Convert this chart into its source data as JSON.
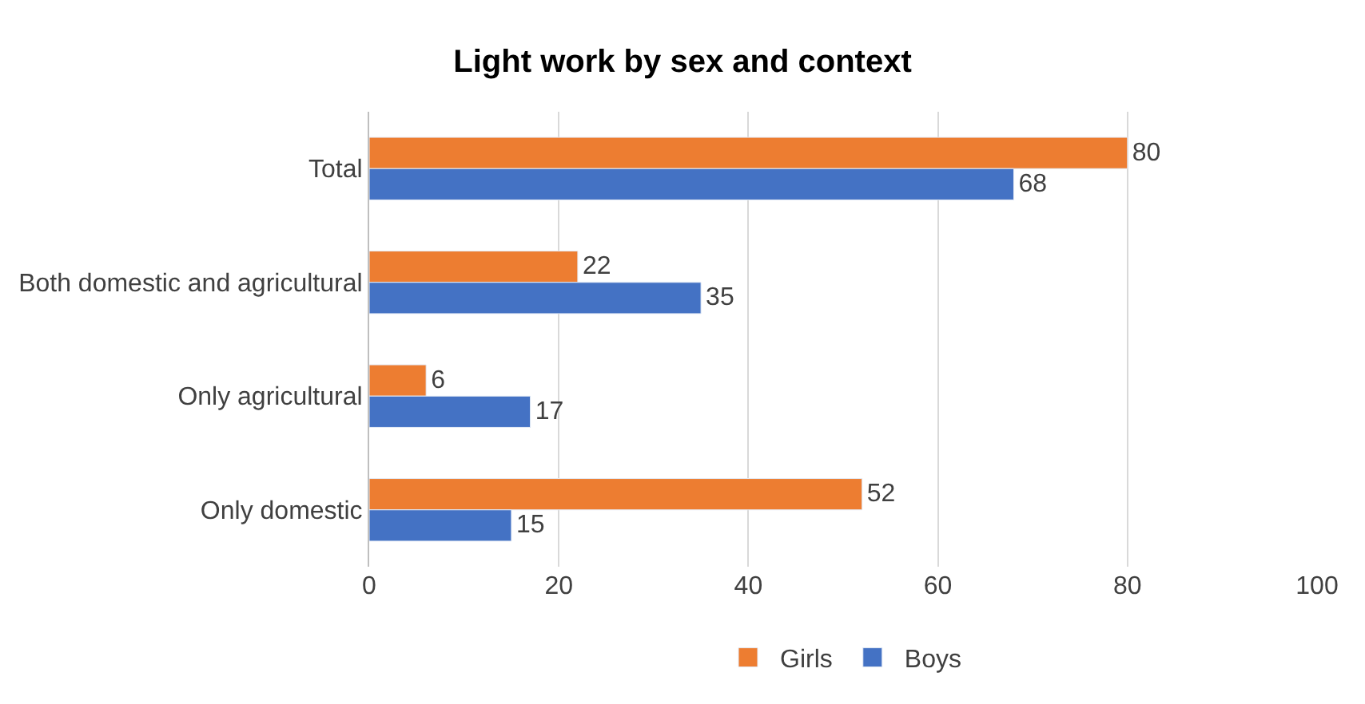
{
  "chart_data": {
    "type": "bar",
    "orientation": "horizontal",
    "title": "Light work by sex and context",
    "categories": [
      "Total",
      "Both domestic and agricultural",
      "Only agricultural",
      "Only domestic"
    ],
    "series": [
      {
        "name": "Girls",
        "color": "#ed7d31",
        "values": [
          80,
          22,
          6,
          52
        ]
      },
      {
        "name": "Boys",
        "color": "#4472c4",
        "values": [
          68,
          35,
          17,
          15
        ]
      }
    ],
    "xlim": [
      0,
      100
    ],
    "xticks": [
      0,
      20,
      40,
      60,
      80,
      100
    ],
    "grid": "x",
    "legend": "bottom",
    "data_labels": true
  }
}
